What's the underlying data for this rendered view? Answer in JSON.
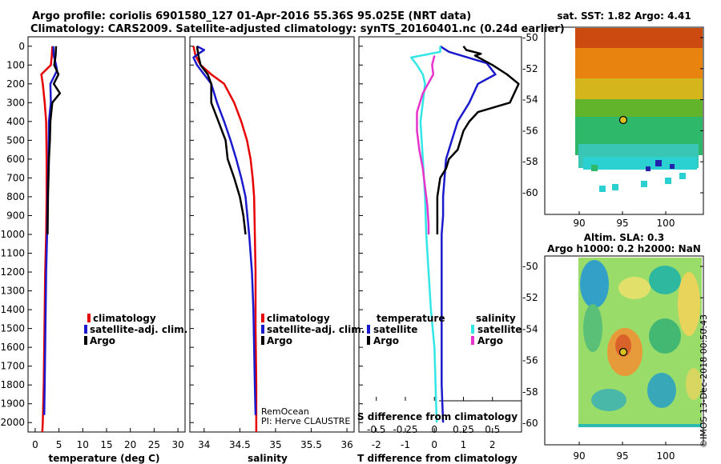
{
  "header": {
    "line1": "Argo profile: coriolis 6901580_127 01-Apr-2016 55.36S 95.025E (NRT data)",
    "line2": "Climatology: CARS2009. Satellite-adjusted climatology: synTS_20160401.nc (0.24d earlier)"
  },
  "colors": {
    "climatology": "#e60000",
    "satellite": "#1a1acc",
    "argo": "#000000",
    "sat_salinity": "#33e6e6",
    "argo_salinity": "#e633cc"
  },
  "depth_axis": {
    "ticks": [
      0,
      100,
      200,
      300,
      400,
      500,
      600,
      700,
      800,
      900,
      1000,
      1100,
      1200,
      1300,
      1400,
      1500,
      1600,
      1700,
      1800,
      1900,
      2000
    ],
    "max": 2050
  },
  "map_sst": {
    "title": "sat. SST: 1.82  Argo: 4.41",
    "lat_ticks": [
      "-50",
      "-52",
      "-54",
      "-56",
      "-58",
      "-60"
    ],
    "lon_ticks": [
      "90",
      "95",
      "100"
    ]
  },
  "map_sla": {
    "title_line1": "Altim. SLA: 0.3",
    "title_line2": "Argo h1000: 0.2  h2000: NaN",
    "lat_ticks": [
      "-50",
      "-52",
      "-54",
      "-56",
      "-58",
      "-60"
    ],
    "lon_ticks": [
      "90",
      "95",
      "100"
    ]
  },
  "footer_stamp": "©IMOS 13-Dec-2018 00:50:43",
  "chart_data": [
    {
      "type": "line",
      "title": "",
      "xlabel": "temperature (deg C)",
      "ylabel": "",
      "xlim": [
        -1.5,
        31.5
      ],
      "ylim": [
        2050,
        -50
      ],
      "x_tick_labels": [
        "0",
        "5",
        "10",
        "15",
        "20",
        "25",
        "30"
      ],
      "x_ticks": [
        0,
        5,
        10,
        15,
        20,
        25,
        30
      ],
      "legend": [
        "climatology",
        "satellite-adj. clim.",
        "Argo"
      ],
      "legend_position": "center-right",
      "series": [
        {
          "name": "climatology",
          "color_key": "climatology",
          "points": [
            [
              3.6,
              0
            ],
            [
              3.5,
              50
            ],
            [
              3.3,
              100
            ],
            [
              1.3,
              150
            ],
            [
              1.6,
              200
            ],
            [
              2.0,
              300
            ],
            [
              2.3,
              400
            ],
            [
              2.4,
              600
            ],
            [
              2.4,
              800
            ],
            [
              2.3,
              1000
            ],
            [
              2.1,
              1200
            ],
            [
              2.0,
              1400
            ],
            [
              1.9,
              1600
            ],
            [
              1.8,
              1800
            ],
            [
              1.6,
              2000
            ],
            [
              1.5,
              2050
            ]
          ]
        },
        {
          "name": "satellite-adj. clim.",
          "color_key": "satellite",
          "points": [
            [
              3.8,
              0
            ],
            [
              3.9,
              50
            ],
            [
              4.4,
              100
            ],
            [
              4.6,
              130
            ],
            [
              3.2,
              200
            ],
            [
              3.3,
              300
            ],
            [
              2.9,
              400
            ],
            [
              2.8,
              600
            ],
            [
              2.6,
              800
            ],
            [
              2.5,
              1000
            ],
            [
              2.3,
              1200
            ],
            [
              2.2,
              1400
            ],
            [
              2.1,
              1600
            ],
            [
              2.0,
              1800
            ],
            [
              1.9,
              1960
            ]
          ]
        },
        {
          "name": "Argo",
          "color_key": "argo",
          "points": [
            [
              4.4,
              0
            ],
            [
              4.3,
              50
            ],
            [
              4.0,
              100
            ],
            [
              4.9,
              150
            ],
            [
              3.9,
              200
            ],
            [
              5.2,
              250
            ],
            [
              3.6,
              300
            ],
            [
              3.2,
              400
            ],
            [
              3.1,
              500
            ],
            [
              2.9,
              600
            ],
            [
              2.8,
              700
            ],
            [
              2.7,
              800
            ],
            [
              2.6,
              1000
            ]
          ]
        }
      ]
    },
    {
      "type": "line",
      "title": "",
      "xlabel": "salinity",
      "ylabel": "",
      "xlim": [
        33.8,
        36.1
      ],
      "ylim": [
        2050,
        -50
      ],
      "x_tick_labels": [
        "34",
        "34.5",
        "35",
        "35.5",
        "36"
      ],
      "x_ticks": [
        34,
        34.5,
        35,
        35.5,
        36
      ],
      "legend": [
        "climatology",
        "satellite-adj. clim.",
        "Argo"
      ],
      "legend_position": "center-right",
      "annotation_line1": "RemOcean",
      "annotation_line2": "PI: Herve CLAUSTRE",
      "series": [
        {
          "name": "climatology",
          "color_key": "climatology",
          "points": [
            [
              33.85,
              0
            ],
            [
              33.88,
              50
            ],
            [
              33.95,
              100
            ],
            [
              34.1,
              150
            ],
            [
              34.28,
              200
            ],
            [
              34.42,
              300
            ],
            [
              34.52,
              400
            ],
            [
              34.6,
              500
            ],
            [
              34.65,
              600
            ],
            [
              34.68,
              700
            ],
            [
              34.7,
              800
            ],
            [
              34.71,
              1000
            ],
            [
              34.72,
              1200
            ],
            [
              34.72,
              1500
            ],
            [
              34.73,
              1800
            ],
            [
              34.73,
              2050
            ]
          ]
        },
        {
          "name": "satellite-adj. clim.",
          "color_key": "satellite",
          "points": [
            [
              33.9,
              0
            ],
            [
              34.0,
              20
            ],
            [
              33.92,
              40
            ],
            [
              33.85,
              60
            ],
            [
              33.9,
              100
            ],
            [
              34.0,
              150
            ],
            [
              34.1,
              200
            ],
            [
              34.18,
              300
            ],
            [
              34.28,
              400
            ],
            [
              34.37,
              500
            ],
            [
              34.45,
              600
            ],
            [
              34.52,
              700
            ],
            [
              34.58,
              800
            ],
            [
              34.63,
              1000
            ],
            [
              34.67,
              1200
            ],
            [
              34.69,
              1400
            ],
            [
              34.7,
              1600
            ],
            [
              34.71,
              1800
            ],
            [
              34.72,
              1960
            ]
          ]
        },
        {
          "name": "Argo",
          "color_key": "argo",
          "points": [
            [
              33.9,
              0
            ],
            [
              33.92,
              50
            ],
            [
              33.95,
              100
            ],
            [
              34.05,
              150
            ],
            [
              34.1,
              200
            ],
            [
              34.1,
              300
            ],
            [
              34.2,
              400
            ],
            [
              34.3,
              500
            ],
            [
              34.33,
              600
            ],
            [
              34.42,
              700
            ],
            [
              34.5,
              800
            ],
            [
              34.55,
              900
            ],
            [
              34.58,
              1000
            ]
          ]
        }
      ]
    },
    {
      "type": "line",
      "title": "",
      "xlabel": "T difference from climatology",
      "ylabel": "",
      "xlim": [
        -2.6,
        3.0
      ],
      "ylim": [
        2050,
        -50
      ],
      "x_tick_labels": [
        "-2",
        "-1",
        "0",
        "1",
        "2"
      ],
      "x_ticks": [
        -2,
        -1,
        0,
        1,
        2
      ],
      "secondary_axis_label": "S difference from climatology",
      "secondary_tick_labels": [
        "-0.5",
        "-0.25",
        "0",
        "0.25",
        "0.5"
      ],
      "secondary_ticks": [
        -0.5,
        -0.25,
        0,
        0.25,
        0.5
      ],
      "secondary_range": [
        -0.65,
        0.75
      ],
      "legend_left_title": "temperature",
      "legend_right_title": "salinity",
      "legend_left": [
        "satellite",
        "Argo"
      ],
      "legend_right": [
        "satellite",
        "Argo"
      ],
      "series": [
        {
          "name": "temperature satellite",
          "color_key": "satellite",
          "units": "T",
          "points": [
            [
              0.2,
              0
            ],
            [
              0.5,
              30
            ],
            [
              1.8,
              90
            ],
            [
              2.1,
              150
            ],
            [
              1.5,
              200
            ],
            [
              1.2,
              300
            ],
            [
              0.8,
              400
            ],
            [
              0.6,
              500
            ],
            [
              0.4,
              600
            ],
            [
              0.35,
              700
            ],
            [
              0.3,
              800
            ],
            [
              0.3,
              900
            ],
            [
              0.25,
              1000
            ],
            [
              0.25,
              1200
            ],
            [
              0.25,
              1400
            ],
            [
              0.25,
              1600
            ],
            [
              0.25,
              1800
            ],
            [
              0.3,
              2000
            ]
          ]
        },
        {
          "name": "temperature Argo",
          "color_key": "argo",
          "units": "T",
          "points": [
            [
              1.0,
              0
            ],
            [
              1.1,
              20
            ],
            [
              1.6,
              40
            ],
            [
              1.4,
              50
            ],
            [
              2.0,
              100
            ],
            [
              2.5,
              150
            ],
            [
              2.9,
              200
            ],
            [
              2.6,
              300
            ],
            [
              1.5,
              350
            ],
            [
              1.2,
              400
            ],
            [
              1.0,
              450
            ],
            [
              0.9,
              500
            ],
            [
              0.8,
              550
            ],
            [
              0.5,
              600
            ],
            [
              0.4,
              650
            ],
            [
              0.2,
              700
            ],
            [
              0.1,
              800
            ],
            [
              0.1,
              900
            ],
            [
              0.1,
              1000
            ]
          ]
        },
        {
          "name": "salinity satellite",
          "color_key": "sat_salinity",
          "units": "S",
          "points": [
            [
              0.05,
              0
            ],
            [
              0.05,
              30
            ],
            [
              -0.2,
              60
            ],
            [
              -0.15,
              100
            ],
            [
              -0.1,
              150
            ],
            [
              -0.08,
              200
            ],
            [
              -0.1,
              300
            ],
            [
              -0.12,
              400
            ],
            [
              -0.1,
              600
            ],
            [
              -0.08,
              800
            ],
            [
              -0.07,
              1000
            ],
            [
              -0.05,
              1200
            ],
            [
              -0.03,
              1400
            ],
            [
              0,
              1600
            ],
            [
              0.01,
              1800
            ],
            [
              0.02,
              2000
            ]
          ]
        },
        {
          "name": "salinity Argo",
          "color_key": "argo_salinity",
          "units": "S",
          "points": [
            [
              0,
              50
            ],
            [
              -0.02,
              100
            ],
            [
              -0.01,
              150
            ],
            [
              -0.1,
              250
            ],
            [
              -0.15,
              350
            ],
            [
              -0.15,
              450
            ],
            [
              -0.13,
              550
            ],
            [
              -0.1,
              650
            ],
            [
              -0.08,
              750
            ],
            [
              -0.06,
              850
            ],
            [
              -0.05,
              950
            ],
            [
              -0.05,
              1000
            ]
          ]
        }
      ]
    }
  ]
}
